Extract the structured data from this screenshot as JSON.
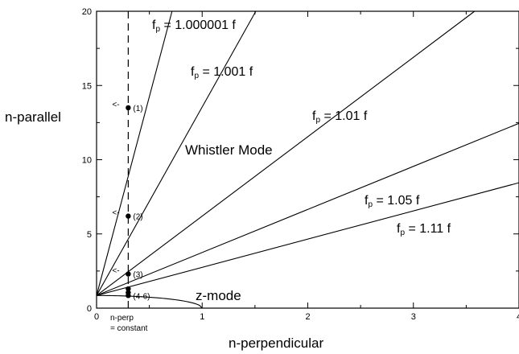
{
  "chart_data": {
    "type": "line",
    "xlabel": "n-perpendicular",
    "ylabel": "n-parallel",
    "xlim": [
      0,
      4
    ],
    "ylim": [
      0,
      20
    ],
    "x_ticks": [
      "0",
      "1",
      "2",
      "3",
      "4"
    ],
    "y_ticks": [
      "0",
      "5",
      "10",
      "15",
      "20"
    ],
    "series": [
      {
        "name": "fp = 1.000001 f",
        "label_main": "f",
        "label_sub": "p",
        "label_rest": " = 1.000001 f",
        "n0": 0.85,
        "slope": 26.8
      },
      {
        "name": "fp = 1.001 f",
        "label_main": "f",
        "label_sub": "p",
        "label_rest": " = 1.001 f",
        "n0": 0.85,
        "slope": 12.7
      },
      {
        "name": "fp = 1.01 f",
        "label_main": "f",
        "label_sub": "p",
        "label_rest": " = 1.01 f",
        "n0": 0.85,
        "slope": 5.35
      },
      {
        "name": "fp = 1.05 f",
        "label_main": "f",
        "label_sub": "p",
        "label_rest": " = 1.05 f",
        "n0": 0.85,
        "slope": 2.9
      },
      {
        "name": "fp = 1.11 f",
        "label_main": "f",
        "label_sub": "p",
        "label_rest": " = 1.11 f",
        "n0": 0.85,
        "slope": 1.9
      }
    ],
    "z_mode": {
      "label": "z-mode",
      "n0": 0.85,
      "x_end": 1.0
    },
    "n_perp_constant_line": {
      "x": 0.3,
      "label_line1": "n-perp",
      "label_line2": "= constant"
    },
    "marked_points": [
      {
        "label": "(1)",
        "x": 0.3,
        "y": 13.5
      },
      {
        "label": "(2)",
        "x": 0.3,
        "y": 6.2
      },
      {
        "label": "(3)",
        "x": 0.3,
        "y": 2.3
      },
      {
        "label": "(4-6)",
        "x": 0.3,
        "y": 0.85
      },
      {
        "label": "",
        "x": 0.3,
        "y": 1.3
      },
      {
        "label": "",
        "x": 0.3,
        "y": 1.05
      }
    ],
    "arrows": [
      {
        "near": "(1)",
        "symbol": "<"
      },
      {
        "near": "(2)",
        "symbol": "<"
      },
      {
        "near": "(3)",
        "symbol": "<"
      }
    ],
    "annotations": {
      "whistler_mode": "Whistler Mode"
    }
  }
}
